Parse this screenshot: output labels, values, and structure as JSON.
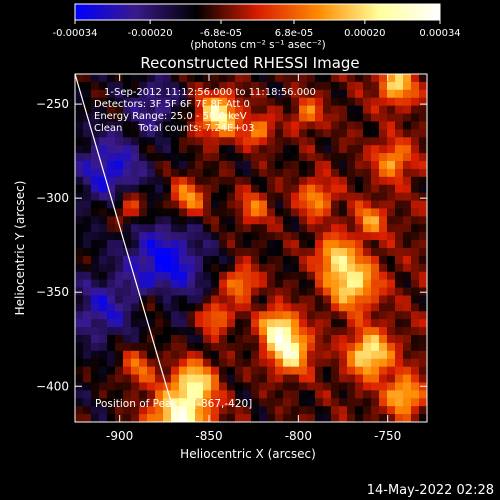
{
  "chart_data": {
    "type": "heatmap",
    "title": "Reconstructed RHESSI Image",
    "xlabel": "Heliocentric X (arcsec)",
    "ylabel": "Heliocentric Y (arcsec)",
    "xlim": [
      -925,
      -728
    ],
    "ylim": [
      -419,
      -234
    ],
    "x_ticks": [
      -900,
      -850,
      -800,
      -750
    ],
    "y_ticks": [
      -250,
      -300,
      -350,
      -400
    ],
    "x_tick_labels": [
      "-900",
      "-850",
      "-800",
      "-750"
    ],
    "y_tick_labels": [
      "−250",
      "−300",
      "−350",
      "−400"
    ],
    "colorbar": {
      "min": -0.00034,
      "max": 0.00034,
      "ticks": [
        -0.00034,
        -0.0002,
        -6.8e-05,
        6.8e-05,
        0.0002,
        0.00034
      ],
      "tick_labels": [
        "-0.00034",
        "-0.00020",
        "-6.8e-05",
        "6.8e-05",
        "0.00020",
        "0.00034"
      ],
      "units_label": "(photons cm⁻² s⁻¹ asec⁻²)",
      "stops": [
        "#0000ff",
        "#3a1a8a",
        "#000000",
        "#d81c00",
        "#ff8a00",
        "#ffff9a",
        "#ffffff"
      ]
    },
    "info_lines": [
      "1-Sep-2012 11:12:56.000 to 11:18:56.000",
      "Detectors: 3F 5F 6F 7F 8F  Att 0",
      "Energy Range: 25.0 - 50.0 keV",
      "Clean     Total counts: 7.24E+03"
    ],
    "peak_label": "Position of Peak = [-867,-420]",
    "peak": [
      -867,
      -420
    ],
    "limb_line": [
      [
        -925,
        -234
      ],
      [
        -868,
        -419
      ]
    ],
    "grid": false,
    "legend": "none"
  },
  "footer": {
    "timestamp": "14-May-2022 02:28"
  }
}
